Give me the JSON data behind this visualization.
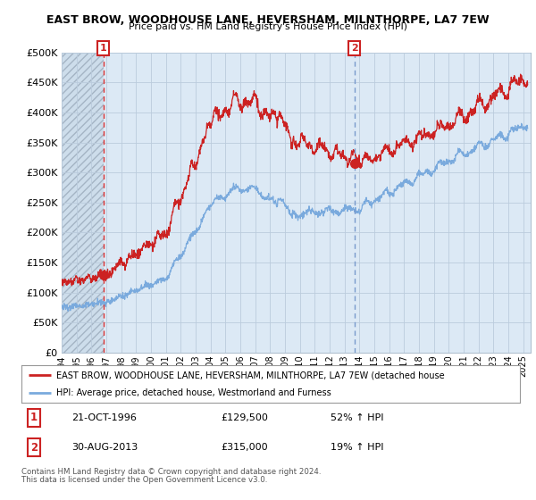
{
  "title": "EAST BROW, WOODHOUSE LANE, HEVERSHAM, MILNTHORPE, LA7 7EW",
  "subtitle": "Price paid vs. HM Land Registry's House Price Index (HPI)",
  "ylabel_ticks": [
    "£0",
    "£50K",
    "£100K",
    "£150K",
    "£200K",
    "£250K",
    "£300K",
    "£350K",
    "£400K",
    "£450K",
    "£500K"
  ],
  "ytick_values": [
    0,
    50000,
    100000,
    150000,
    200000,
    250000,
    300000,
    350000,
    400000,
    450000,
    500000
  ],
  "ylim": [
    0,
    500000
  ],
  "xlim_start": 1994.0,
  "xlim_end": 2025.5,
  "sale1_year": 1996.8,
  "sale1_price": 129500,
  "sale2_year": 2013.67,
  "sale2_price": 315000,
  "legend_line1": "EAST BROW, WOODHOUSE LANE, HEVERSHAM, MILNTHORPE, LA7 7EW (detached house",
  "legend_line2": "HPI: Average price, detached house, Westmorland and Furness",
  "table_row1": [
    "1",
    "21-OCT-1996",
    "£129,500",
    "52% ↑ HPI"
  ],
  "table_row2": [
    "2",
    "30-AUG-2013",
    "£315,000",
    "19% ↑ HPI"
  ],
  "footer1": "Contains HM Land Registry data © Crown copyright and database right 2024.",
  "footer2": "This data is licensed under the Open Government Licence v3.0.",
  "red_line_color": "#cc2222",
  "blue_line_color": "#7aaadd",
  "plot_bg_color": "#dce9f5",
  "bg_color": "#ffffff",
  "grid_color": "#bbccdd",
  "hatch_color": "#bbbbcc"
}
